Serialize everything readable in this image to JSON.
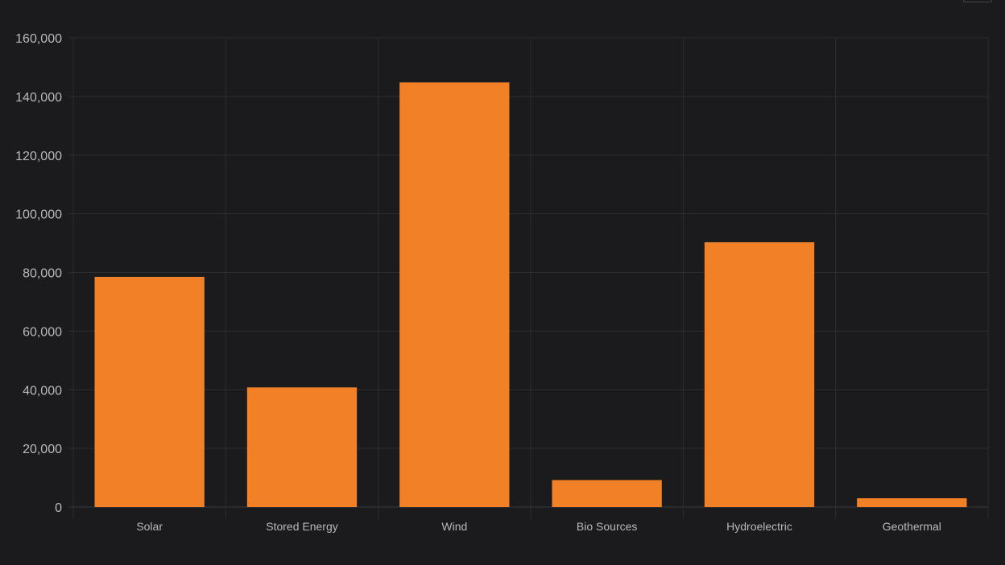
{
  "chart_data": {
    "type": "bar",
    "categories": [
      "Solar",
      "Stored Energy",
      "Wind",
      "Bio Sources",
      "Hydroelectric",
      "Geothermal"
    ],
    "series": [
      {
        "values": [
          78500,
          40800,
          144800,
          9200,
          90300,
          3000
        ]
      }
    ],
    "y_ticks": [
      "0",
      "20,000",
      "40,000",
      "60,000",
      "80,000",
      "100,000",
      "120,000",
      "140,000",
      "160,000"
    ],
    "ylim": [
      0,
      160000
    ],
    "title": "",
    "xlabel": "",
    "ylabel": "",
    "grid": true,
    "colors": {
      "bar": "#f28026",
      "background": "#1b1b1d",
      "grid": "#2e2e32",
      "text": "#b9b9bd"
    }
  }
}
